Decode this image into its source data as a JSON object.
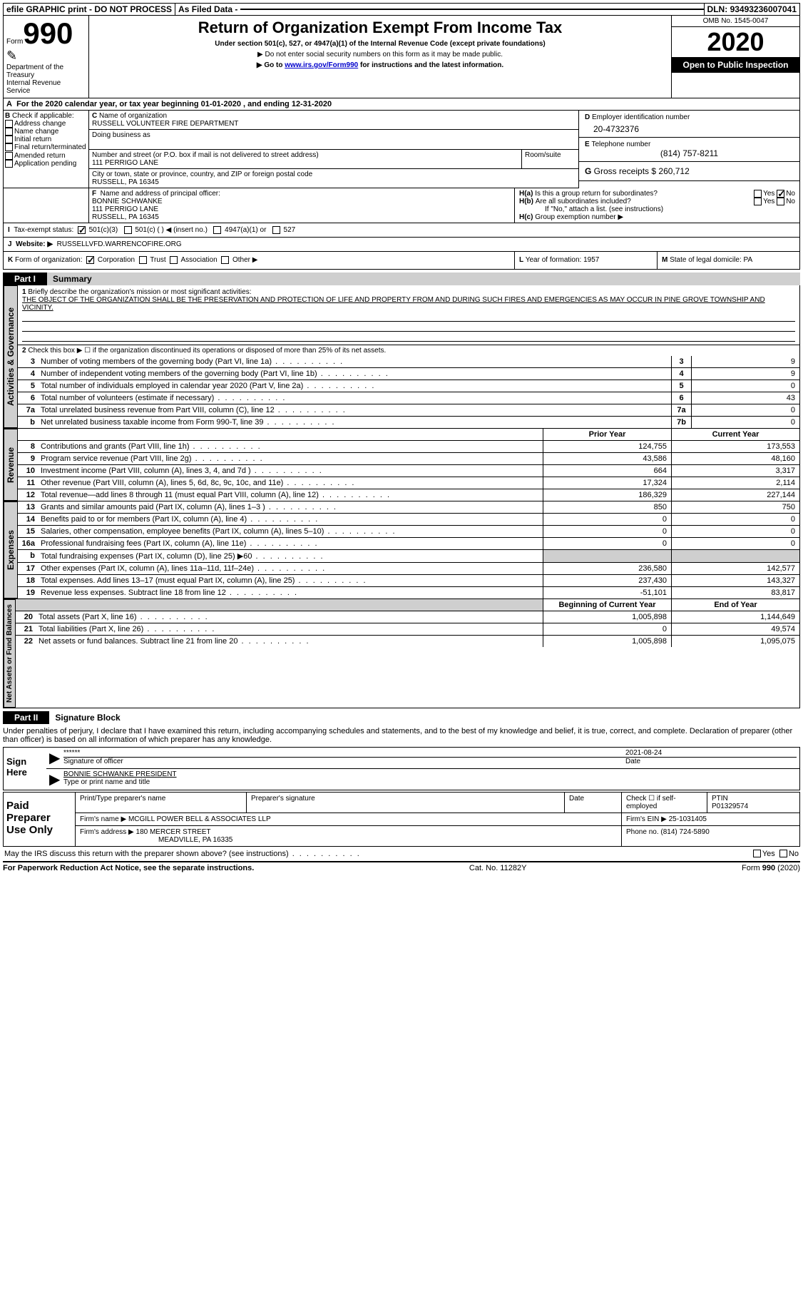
{
  "top": {
    "efile": "efile GRAPHIC print - DO NOT PROCESS",
    "asfiled": "As Filed Data -",
    "dln_label": "DLN:",
    "dln": "93493236007041"
  },
  "header": {
    "form": "Form",
    "num": "990",
    "dept1": "Department of the",
    "dept2": "Treasury",
    "dept3": "Internal Revenue Service",
    "title": "Return of Organization Exempt From Income Tax",
    "sub": "Under section 501(c), 527, or 4947(a)(1) of the Internal Revenue Code (except private foundations)",
    "note1": "▶ Do not enter social security numbers on this form as it may be made public.",
    "note2a": "▶ Go to ",
    "note2link": "www.irs.gov/Form990",
    "note2b": " for instructions and the latest information.",
    "omb": "OMB No. 1545-0047",
    "year": "2020",
    "open": "Open to Public Inspection"
  },
  "lineA": "For the 2020 calendar year, or tax year beginning 01-01-2020   , and ending 12-31-2020",
  "B": {
    "label": "Check if applicable:",
    "opts": [
      "Address change",
      "Name change",
      "Initial return",
      "Final return/terminated",
      "Amended return",
      "Application pending"
    ]
  },
  "C": {
    "name_label": "Name of organization",
    "name": "RUSSELL VOLUNTEER FIRE DEPARTMENT",
    "dba_label": "Doing business as",
    "addr_label": "Number and street (or P.O. box if mail is not delivered to street address)",
    "room_label": "Room/suite",
    "addr": "111 PERRIGO LANE",
    "city_label": "City or town, state or province, country, and ZIP or foreign postal code",
    "city": "RUSSELL, PA  16345"
  },
  "D": {
    "label": "Employer identification number",
    "val": "20-4732376"
  },
  "E": {
    "label": "Telephone number",
    "val": "(814) 757-8211"
  },
  "G": {
    "label": "Gross receipts $",
    "val": "260,712"
  },
  "F": {
    "label": "Name and address of principal officer:",
    "l1": "BONNIE SCHWANKE",
    "l2": "111 PERRIGO LANE",
    "l3": "RUSSELL, PA  16345"
  },
  "H": {
    "a": "Is this a group return for subordinates?",
    "b": "Are all subordinates included?",
    "bnote": "If \"No,\" attach a list. (see instructions)",
    "c": "Group exemption number ▶",
    "yes": "Yes",
    "no": "No"
  },
  "I": {
    "label": "Tax-exempt status:",
    "o1": "501(c)(3)",
    "o2": "501(c) (   ) ◀ (insert no.)",
    "o3": "4947(a)(1) or",
    "o4": "527"
  },
  "J": {
    "label": "Website: ▶",
    "val": "RUSSELLVFD.WARRENCOFIRE.ORG"
  },
  "K": {
    "label": "Form of organization:",
    "corp": "Corporation",
    "trust": "Trust",
    "assoc": "Association",
    "other": "Other ▶"
  },
  "L": {
    "label": "Year of formation:",
    "val": "1957"
  },
  "M": {
    "label": "State of legal domicile:",
    "val": "PA"
  },
  "partI": {
    "tag": "Part I",
    "title": "Summary",
    "q1a": "Briefly describe the organization's mission or most significant activities:",
    "q1b": "THE OBJECT OF THE ORGANIZATION SHALL BE THE PRESERVATION AND PROTECTION OF LIFE AND PROPERTY FROM AND DURING SUCH FIRES AND EMERGENCIES AS MAY OCCUR IN PINE GROVE TOWNSHIP AND VICINITY.",
    "q2": "Check this box ▶ ☐ if the organization discontinued its operations or disposed of more than 25% of its net assets.",
    "rows_gov": [
      {
        "n": "3",
        "t": "Number of voting members of the governing body (Part VI, line 1a)",
        "b": "3",
        "v": "9"
      },
      {
        "n": "4",
        "t": "Number of independent voting members of the governing body (Part VI, line 1b)",
        "b": "4",
        "v": "9"
      },
      {
        "n": "5",
        "t": "Total number of individuals employed in calendar year 2020 (Part V, line 2a)",
        "b": "5",
        "v": "0"
      },
      {
        "n": "6",
        "t": "Total number of volunteers (estimate if necessary)",
        "b": "6",
        "v": "43"
      },
      {
        "n": "7a",
        "t": "Total unrelated business revenue from Part VIII, column (C), line 12",
        "b": "7a",
        "v": "0"
      },
      {
        "n": "b",
        "t": "Net unrelated business taxable income from Form 990-T, line 39",
        "b": "7b",
        "v": "0"
      }
    ],
    "col_hdr_prior": "Prior Year",
    "col_hdr_curr": "Current Year",
    "rows_rev": [
      {
        "n": "8",
        "t": "Contributions and grants (Part VIII, line 1h)",
        "p": "124,755",
        "c": "173,553"
      },
      {
        "n": "9",
        "t": "Program service revenue (Part VIII, line 2g)",
        "p": "43,586",
        "c": "48,160"
      },
      {
        "n": "10",
        "t": "Investment income (Part VIII, column (A), lines 3, 4, and 7d )",
        "p": "664",
        "c": "3,317"
      },
      {
        "n": "11",
        "t": "Other revenue (Part VIII, column (A), lines 5, 6d, 8c, 9c, 10c, and 11e)",
        "p": "17,324",
        "c": "2,114"
      },
      {
        "n": "12",
        "t": "Total revenue—add lines 8 through 11 (must equal Part VIII, column (A), line 12)",
        "p": "186,329",
        "c": "227,144"
      }
    ],
    "rows_exp": [
      {
        "n": "13",
        "t": "Grants and similar amounts paid (Part IX, column (A), lines 1–3 )",
        "p": "850",
        "c": "750"
      },
      {
        "n": "14",
        "t": "Benefits paid to or for members (Part IX, column (A), line 4)",
        "p": "0",
        "c": "0"
      },
      {
        "n": "15",
        "t": "Salaries, other compensation, employee benefits (Part IX, column (A), lines 5–10)",
        "p": "0",
        "c": "0"
      },
      {
        "n": "16a",
        "t": "Professional fundraising fees (Part IX, column (A), line 11e)",
        "p": "0",
        "c": "0"
      },
      {
        "n": "b",
        "t": "Total fundraising expenses (Part IX, column (D), line 25) ▶60",
        "p": "",
        "c": "",
        "grey": true
      },
      {
        "n": "17",
        "t": "Other expenses (Part IX, column (A), lines 11a–11d, 11f–24e)",
        "p": "236,580",
        "c": "142,577"
      },
      {
        "n": "18",
        "t": "Total expenses. Add lines 13–17 (must equal Part IX, column (A), line 25)",
        "p": "237,430",
        "c": "143,327"
      },
      {
        "n": "19",
        "t": "Revenue less expenses. Subtract line 18 from line 12",
        "p": "-51,101",
        "c": "83,817"
      }
    ],
    "col_hdr_beg": "Beginning of Current Year",
    "col_hdr_end": "End of Year",
    "rows_net": [
      {
        "n": "20",
        "t": "Total assets (Part X, line 16)",
        "p": "1,005,898",
        "c": "1,144,649"
      },
      {
        "n": "21",
        "t": "Total liabilities (Part X, line 26)",
        "p": "0",
        "c": "49,574"
      },
      {
        "n": "22",
        "t": "Net assets or fund balances. Subtract line 21 from line 20",
        "p": "1,005,898",
        "c": "1,095,075"
      }
    ],
    "vlabels": {
      "gov": "Activities & Governance",
      "rev": "Revenue",
      "exp": "Expenses",
      "net": "Net Assets or Fund Balances"
    }
  },
  "partII": {
    "tag": "Part II",
    "title": "Signature Block",
    "decl": "Under penalties of perjury, I declare that I have examined this return, including accompanying schedules and statements, and to the best of my knowledge and belief, it is true, correct, and complete. Declaration of preparer (other than officer) is based on all information of which preparer has any knowledge.",
    "sign_here": "Sign Here",
    "stars": "******",
    "sig_of_officer": "Signature of officer",
    "date": "2021-08-24",
    "date_label": "Date",
    "name_title": "BONNIE SCHWANKE PRESIDENT",
    "type_name": "Type or print name and title",
    "paid": "Paid Preparer Use Only",
    "prep_name_label": "Print/Type preparer's name",
    "prep_sig_label": "Preparer's signature",
    "prep_date_label": "Date",
    "check_self": "Check ☐ if self-employed",
    "ptin_label": "PTIN",
    "ptin": "P01329574",
    "firm_name_label": "Firm's name    ▶",
    "firm_name": "MCGILL POWER BELL & ASSOCIATES LLP",
    "firm_ein_label": "Firm's EIN ▶",
    "firm_ein": "25-1031405",
    "firm_addr_label": "Firm's address ▶",
    "firm_addr1": "180 MERCER STREET",
    "firm_addr2": "MEADVILLE, PA  16335",
    "phone_label": "Phone no.",
    "phone": "(814) 724-5890",
    "may_irs": "May the IRS discuss this return with the preparer shown above? (see instructions)",
    "yes": "Yes",
    "no": "No"
  },
  "footer": {
    "left": "For Paperwork Reduction Act Notice, see the separate instructions.",
    "mid": "Cat. No. 11282Y",
    "right_a": "Form ",
    "right_b": "990",
    "right_c": " (2020)"
  }
}
